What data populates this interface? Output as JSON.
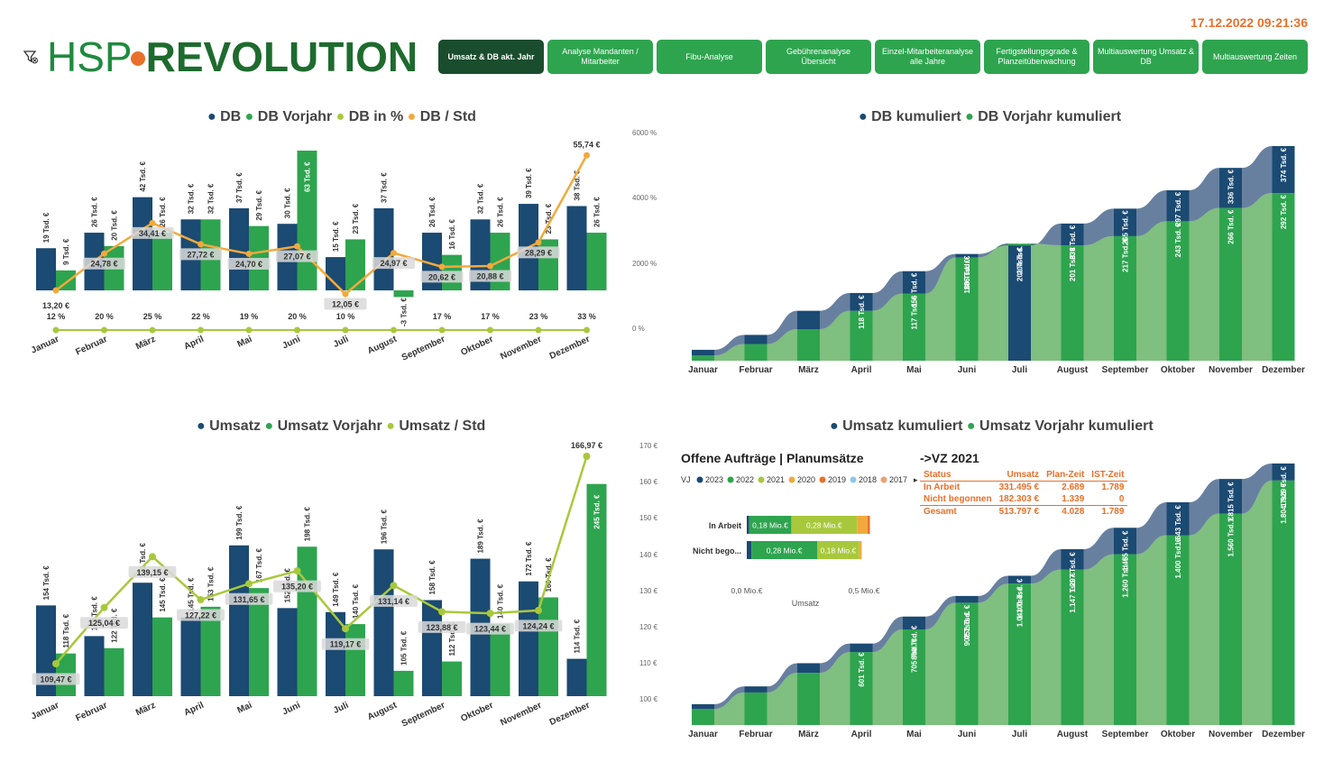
{
  "timestamp": "17.12.2022 09:21:36",
  "logo": {
    "part1": "HSP",
    "part2": "REVOLUTION"
  },
  "nav": [
    {
      "label": "Umsatz & DB akt. Jahr",
      "active": true
    },
    {
      "label": "Analyse Mandanten / Mitarbeiter",
      "active": false
    },
    {
      "label": "Fibu-Analyse",
      "active": false
    },
    {
      "label": "Gebührenanalyse Übersicht",
      "active": false
    },
    {
      "label": "Einzel-Mitarbeiteranalyse alle Jahre",
      "active": false
    },
    {
      "label": "Fertigstellungsgrade & Planzeitüberwachung",
      "active": false
    },
    {
      "label": "Multiauswertung Umsatz & DB",
      "active": false
    },
    {
      "label": "Multiauswertung Zeiten",
      "active": false
    }
  ],
  "colors": {
    "navy": "#1B4A72",
    "green": "#2EA44F",
    "lime": "#A8C83C",
    "orange": "#F2A93B",
    "lightgreen": "#7FBF7F",
    "slate": "#4E6A8E"
  },
  "offene": {
    "title": "Offene Aufträge | Planumsätze",
    "legend_prefix": "VJ",
    "legend": [
      {
        "label": "2023",
        "color": "#1B4A72"
      },
      {
        "label": "2022",
        "color": "#2EA44F"
      },
      {
        "label": "2021",
        "color": "#A8C83C"
      },
      {
        "label": "2020",
        "color": "#F2A93B"
      },
      {
        "label": "2019",
        "color": "#E8702A"
      },
      {
        "label": "2018",
        "color": "#8EC6E8"
      },
      {
        "label": "2017",
        "color": "#F0A070"
      }
    ],
    "rows": [
      {
        "label": "In Arbeit",
        "segs": [
          {
            "v": 0.01,
            "c": "#1B4A72"
          },
          {
            "v": 0.18,
            "c": "#2EA44F",
            "t": "0,18 Mio.€"
          },
          {
            "v": 0.28,
            "c": "#A8C83C",
            "t": "0,28 Mio.€"
          },
          {
            "v": 0.045,
            "c": "#F2A93B"
          },
          {
            "v": 0.01,
            "c": "#E8702A"
          }
        ]
      },
      {
        "label": "Nicht bego...",
        "segs": [
          {
            "v": 0.02,
            "c": "#1B4A72"
          },
          {
            "v": 0.28,
            "c": "#2EA44F",
            "t": "0,28 Mio.€"
          },
          {
            "v": 0.18,
            "c": "#A8C83C",
            "t": "0,18 Mio.€"
          },
          {
            "v": 0.01,
            "c": "#F2A93B"
          }
        ]
      }
    ],
    "x_ticks": [
      "0,0 Mio.€",
      "0,5 Mio.€"
    ],
    "x_label": "Umsatz"
  },
  "vz": {
    "title": "->VZ 2021",
    "headers": [
      "Status",
      "Umsatz",
      "Plan-Zeit",
      "IST-Zeit"
    ],
    "rows": [
      [
        "In Arbeit",
        "331.495 €",
        "2.689",
        "1.789"
      ],
      [
        "Nicht begonnen",
        "182.303 €",
        "1.339",
        "0"
      ],
      [
        "Gesamt",
        "513.797 €",
        "4.028",
        "1.789"
      ]
    ]
  },
  "chart_data": [
    {
      "id": "db",
      "type": "bar",
      "title_items": [
        {
          "label": "DB",
          "color": "#1B4A72"
        },
        {
          "label": "DB Vorjahr",
          "color": "#2EA44F"
        },
        {
          "label": "DB in %",
          "color": "#A8C83C"
        },
        {
          "label": "DB / Std",
          "color": "#F2A93B"
        }
      ],
      "categories": [
        "Januar",
        "Februar",
        "März",
        "April",
        "Mai",
        "Juni",
        "Juli",
        "August",
        "September",
        "Oktober",
        "November",
        "Dezember"
      ],
      "series": [
        {
          "name": "DB",
          "values": [
            19,
            26,
            42,
            32,
            37,
            30,
            15,
            37,
            26,
            32,
            39,
            38
          ],
          "labels": [
            "19 Tsd. €",
            "26 Tsd. €",
            "42 Tsd. €",
            "32 Tsd. €",
            "37 Tsd. €",
            "30 Tsd. €",
            "15 Tsd. €",
            "37 Tsd. €",
            "26 Tsd. €",
            "32 Tsd. €",
            "39 Tsd. €",
            "38 Tsd. €"
          ]
        },
        {
          "name": "DB Vorjahr",
          "values": [
            9,
            20,
            26,
            32,
            29,
            63,
            23,
            -3,
            16,
            26,
            23,
            26
          ],
          "labels": [
            "9 Tsd. €",
            "20 Tsd. €",
            "26 Tsd. €",
            "32 Tsd. €",
            "29 Tsd. €",
            "63 Tsd. €",
            "23 Tsd. €",
            "-3 Tsd. €",
            "16 Tsd. €",
            "26 Tsd. €",
            "23 Tsd. €",
            "26 Tsd. €"
          ]
        },
        {
          "name": "DB / Std",
          "values": [
            13.2,
            24.78,
            34.41,
            27.72,
            24.7,
            27.07,
            12.05,
            24.97,
            20.62,
            20.88,
            28.29,
            55.74
          ],
          "labels": [
            "13,20 €",
            "24,78 €",
            "34,41 €",
            "27,72 €",
            "24,70 €",
            "27,07 €",
            "12,05 €",
            "24,97 €",
            "20,62 €",
            "20,88 €",
            "28,29 €",
            "55,74 €"
          ]
        },
        {
          "name": "DB in %",
          "values": [
            12,
            20,
            25,
            22,
            19,
            20,
            10,
            0,
            17,
            17,
            23,
            33
          ],
          "labels": [
            "12 %",
            "20 %",
            "25 %",
            "22 %",
            "19 %",
            "20 %",
            "10 %",
            "",
            "17 %",
            "17 %",
            "23 %",
            "33 %"
          ]
        }
      ],
      "y2_ticks": [
        "6000 %",
        "4000 %",
        "2000 %",
        "0 %"
      ]
    },
    {
      "id": "umsatz",
      "type": "bar",
      "title_items": [
        {
          "label": "Umsatz",
          "color": "#1B4A72"
        },
        {
          "label": "Umsatz Vorjahr",
          "color": "#2EA44F"
        },
        {
          "label": "Umsatz / Std",
          "color": "#A8C83C"
        }
      ],
      "categories": [
        "Januar",
        "Februar",
        "März",
        "April",
        "Mai",
        "Juni",
        "Juli",
        "August",
        "September",
        "Oktober",
        "November",
        "Dezember"
      ],
      "series": [
        {
          "name": "Umsatz",
          "values": [
            154,
            131,
            171,
            145,
            199,
            152,
            149,
            196,
            158,
            189,
            172,
            114
          ],
          "labels": [
            "154 Tsd. €",
            "131 Tsd. €",
            "171 Tsd. €",
            "145 Tsd. €",
            "199 Tsd. €",
            "152 Tsd. €",
            "149 Tsd. €",
            "196 Tsd. €",
            "158 Tsd. €",
            "189 Tsd. €",
            "172 Tsd. €",
            "114 Tsd. €"
          ]
        },
        {
          "name": "Umsatz Vorjahr",
          "values": [
            118,
            122,
            145,
            153,
            167,
            198,
            140,
            105,
            112,
            140,
            160,
            245
          ],
          "labels": [
            "118 Tsd. €",
            "122 Tsd. €",
            "145 Tsd. €",
            "153 Tsd. €",
            "167 Tsd. €",
            "198 Tsd. €",
            "140 Tsd. €",
            "105 Tsd. €",
            "112 Tsd. €",
            "140 Tsd. €",
            "160 Tsd. €",
            "245 Tsd. €"
          ]
        },
        {
          "name": "Umsatz / Std",
          "values": [
            109.47,
            125.04,
            139.15,
            127.22,
            131.65,
            135.2,
            119.17,
            131.14,
            123.88,
            123.44,
            124.24,
            166.97
          ],
          "labels": [
            "109,47 €",
            "125,04 €",
            "139,15 €",
            "127,22 €",
            "131,65 €",
            "135,20 €",
            "119,17 €",
            "131,14 €",
            "123,88 €",
            "123,44 €",
            "124,24 €",
            "166,97 €"
          ]
        }
      ],
      "y2_ticks": [
        "170 €",
        "160 €",
        "150 €",
        "140 €",
        "130 €",
        "120 €",
        "110 €",
        "100 €"
      ]
    },
    {
      "id": "dbkum",
      "type": "area",
      "title_items": [
        {
          "label": "DB kumuliert",
          "color": "#1B4A72"
        },
        {
          "label": "DB Vorjahr kumuliert",
          "color": "#2EA44F"
        }
      ],
      "categories": [
        "Januar",
        "Februar",
        "März",
        "April",
        "Mai",
        "Juni",
        "Juli",
        "August",
        "September",
        "Oktober",
        "November",
        "Dezember"
      ],
      "series": [
        {
          "name": "DB kumuliert",
          "values": [
            19,
            45,
            87,
            118,
            156,
            186,
            201,
            239,
            265,
            297,
            336,
            374
          ],
          "labels": [
            "",
            "",
            "",
            "118 Tsd. €",
            "156 Tsd. €",
            "186 Tsd. €",
            "201 Tsd. €",
            "239 Tsd. €",
            "265 Tsd. €",
            "297 Tsd. €",
            "336 Tsd. €",
            "374 Tsd. €"
          ]
        },
        {
          "name": "DB Vorjahr kumuliert",
          "values": [
            9,
            29,
            55,
            87,
            117,
            180,
            204,
            201,
            217,
            243,
            266,
            292
          ],
          "labels": [
            "",
            "",
            "",
            "",
            "117 Tsd. €",
            "180 Tsd. €",
            "204 Tsd. €",
            "201 Tsd. €",
            "217 Tsd. €",
            "243 Tsd. €",
            "266 Tsd. €",
            "292 Tsd. €"
          ]
        }
      ]
    },
    {
      "id": "umkum",
      "type": "area",
      "title_items": [
        {
          "label": "Umsatz kumuliert",
          "color": "#1B4A72"
        },
        {
          "label": "Umsatz Vorjahr kumuliert",
          "color": "#2EA44F"
        }
      ],
      "categories": [
        "Januar",
        "Februar",
        "März",
        "April",
        "Mai",
        "Juni",
        "Juli",
        "August",
        "September",
        "Oktober",
        "November",
        "Dezember"
      ],
      "series": [
        {
          "name": "Umsatz kumuliert",
          "values": [
            154,
            285,
            456,
            601,
            800,
            952,
            1101,
            1297,
            1455,
            1643,
            1815,
            1929
          ],
          "labels": [
            "",
            "",
            "",
            "601 Tsd. €",
            "800 Tsd. €",
            "952 Tsd. €",
            "1.101 Tsd. €",
            "1.297 Tsd. €",
            "1.455 Tsd. €",
            "1.643 Tsd. €",
            "1.815 Tsd. €",
            "1.929 Tsd. €"
          ]
        },
        {
          "name": "Umsatz Vorjahr kumuliert",
          "values": [
            118,
            240,
            385,
            538,
            705,
            902,
            1043,
            1147,
            1260,
            1400,
            1560,
            1804
          ],
          "labels": [
            "",
            "",
            "",
            "",
            "705 Tsd. €",
            "902 Tsd. €",
            "1.043 Tsd. €",
            "1.147 Tsd. €",
            "1.260 Tsd. €",
            "1.400 Tsd. €",
            "1.560 Tsd. €",
            "1.804 Tsd. €"
          ]
        }
      ]
    }
  ]
}
